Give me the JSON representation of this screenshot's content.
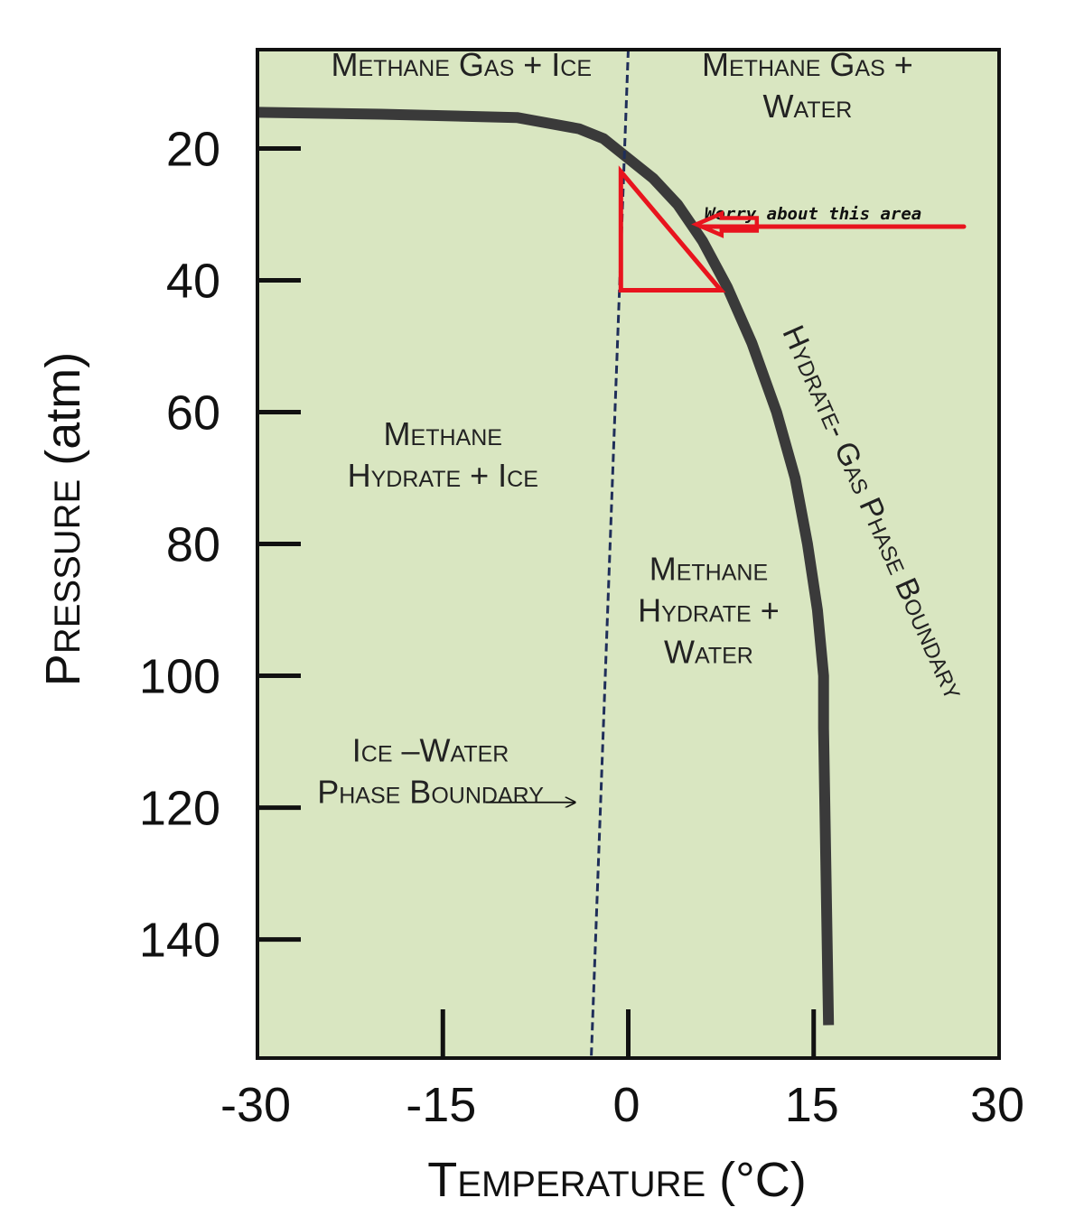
{
  "chart_data": {
    "type": "line",
    "title": "",
    "xlabel": "Temperature (°C)",
    "xlabel_first": "T",
    "xlabel_rest": "EMPERATURE",
    "xlabel_unit": " (°C)",
    "ylabel": "Pressure (atm)",
    "ylabel_first": "P",
    "ylabel_rest": "RESSURE",
    "ylabel_unit": " (atm)",
    "xlim": [
      -30,
      30
    ],
    "ylim": [
      5,
      158
    ],
    "y_inverted": true,
    "x_ticks": [
      -30,
      -15,
      0,
      15,
      30
    ],
    "x_tick_labels": [
      "-30",
      "-15",
      "0",
      "15",
      "30"
    ],
    "y_ticks": [
      20,
      40,
      60,
      80,
      100,
      120,
      140
    ],
    "y_tick_labels": [
      "20",
      "40",
      "60",
      "80",
      "100",
      "120",
      "140"
    ],
    "background_color": "#d9e6c1",
    "series": [
      {
        "name": "Hydrate-Gas Phase Boundary",
        "style": "solid",
        "color": "#3a3a3a",
        "x": [
          -30,
          -20,
          -9,
          -4,
          -2,
          0,
          2,
          4,
          6,
          8,
          10,
          12,
          13.5,
          14.5,
          15.3,
          15.8,
          15.8,
          16.2
        ],
        "y": [
          14.5,
          14.8,
          15.3,
          17,
          18.5,
          21.5,
          24.5,
          28.5,
          34,
          41,
          49.5,
          60,
          70,
          80,
          90,
          100,
          108,
          153
        ]
      },
      {
        "name": "Ice-Water Phase Boundary",
        "style": "dashed",
        "color": "#1f2e5a",
        "x": [
          0,
          -3
        ],
        "y": [
          5,
          158
        ]
      }
    ],
    "regions": [
      {
        "name": "methane-gas-ice",
        "lines": [
          "Methane Gas + Ice"
        ],
        "x": -13.5,
        "y": 9
      },
      {
        "name": "methane-gas-water",
        "lines": [
          "Methane Gas +",
          "Water"
        ],
        "x": 14.5,
        "y": 9
      },
      {
        "name": "methane-hydrate-ice",
        "lines": [
          "Methane",
          "Hydrate + Ice"
        ],
        "x": -15,
        "y": 65
      },
      {
        "name": "methane-hydrate-water",
        "lines": [
          "Methane",
          "Hydrate +",
          "Water"
        ],
        "x": 6.5,
        "y": 85.5
      },
      {
        "name": "ice-water-boundary-label",
        "lines": [
          "Ice –Water",
          "Phase Boundary"
        ],
        "x": -16,
        "y": 113
      }
    ],
    "boundary_label": "Hydrate- Gas Phase Boundary",
    "annotations": [
      {
        "type": "text",
        "text": "Worry about this area",
        "color": "#e8141e"
      },
      {
        "type": "triangle",
        "color": "#e8141e",
        "x": [
          -0.6,
          -0.6,
          7.5
        ],
        "y": [
          23.5,
          41.5,
          41.5
        ]
      },
      {
        "type": "arrow",
        "color": "#e8141e",
        "points_to_x": 5.5,
        "y": 31.5
      }
    ]
  }
}
